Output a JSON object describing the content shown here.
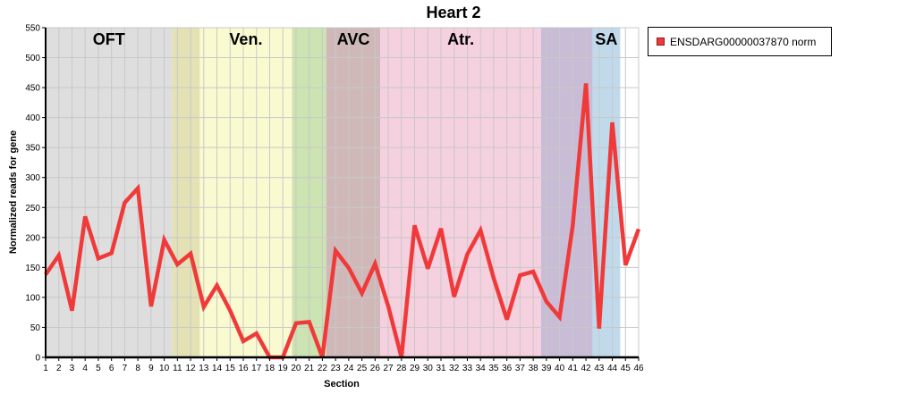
{
  "chart_data": {
    "type": "line",
    "title": "Heart 2",
    "xlabel": "Section",
    "ylabel": "Normalized reads for gene",
    "xlim": [
      1,
      46
    ],
    "ylim": [
      0,
      550
    ],
    "yticks": [
      0,
      50,
      100,
      150,
      200,
      250,
      300,
      350,
      400,
      450,
      500,
      550
    ],
    "xticks": [
      1,
      2,
      3,
      4,
      5,
      6,
      7,
      8,
      9,
      10,
      11,
      12,
      13,
      14,
      15,
      16,
      17,
      18,
      19,
      20,
      21,
      22,
      23,
      24,
      25,
      26,
      27,
      28,
      29,
      30,
      31,
      32,
      33,
      34,
      35,
      36,
      37,
      38,
      39,
      40,
      41,
      42,
      43,
      44,
      45,
      46
    ],
    "grid": true,
    "legend_position": "right",
    "regions": [
      {
        "label": "OFT",
        "start": 1,
        "end": 10.6,
        "color": "#dedede"
      },
      {
        "label": "",
        "start": 10.6,
        "end": 12.7,
        "color": "#e4e2b4"
      },
      {
        "label": "Ven.",
        "start": 12.7,
        "end": 19.7,
        "color": "#fafad0"
      },
      {
        "label": "",
        "start": 19.7,
        "end": 22.3,
        "color": "#cce3b2"
      },
      {
        "label": "AVC",
        "start": 22.3,
        "end": 26.4,
        "color": "#d0b8b8"
      },
      {
        "label": "Atr.",
        "start": 26.4,
        "end": 38.6,
        "color": "#f5d0de"
      },
      {
        "label": "",
        "start": 38.6,
        "end": 42.5,
        "color": "#c9bcd6"
      },
      {
        "label": "SA",
        "start": 42.5,
        "end": 44.6,
        "color": "#c0daec"
      }
    ],
    "series": [
      {
        "name": "ENSDARG00000037870 norm",
        "color": "#f03a3a",
        "x": [
          1,
          2,
          3,
          4,
          5,
          6,
          7,
          8,
          9,
          10,
          11,
          12,
          13,
          14,
          15,
          16,
          17,
          18,
          19,
          20,
          21,
          22,
          23,
          24,
          25,
          26,
          27,
          28,
          29,
          30,
          31,
          32,
          33,
          34,
          35,
          36,
          37,
          38,
          39,
          40,
          41,
          42,
          43,
          44,
          45,
          46
        ],
        "values": [
          138,
          170,
          78,
          235,
          165,
          174,
          258,
          282,
          85,
          196,
          155,
          173,
          84,
          120,
          78,
          27,
          40,
          0,
          0,
          57,
          59,
          0,
          178,
          149,
          107,
          156,
          85,
          0,
          220,
          148,
          215,
          101,
          172,
          212,
          132,
          63,
          137,
          143,
          93,
          67,
          220,
          457,
          48,
          392,
          154,
          214
        ]
      }
    ]
  }
}
